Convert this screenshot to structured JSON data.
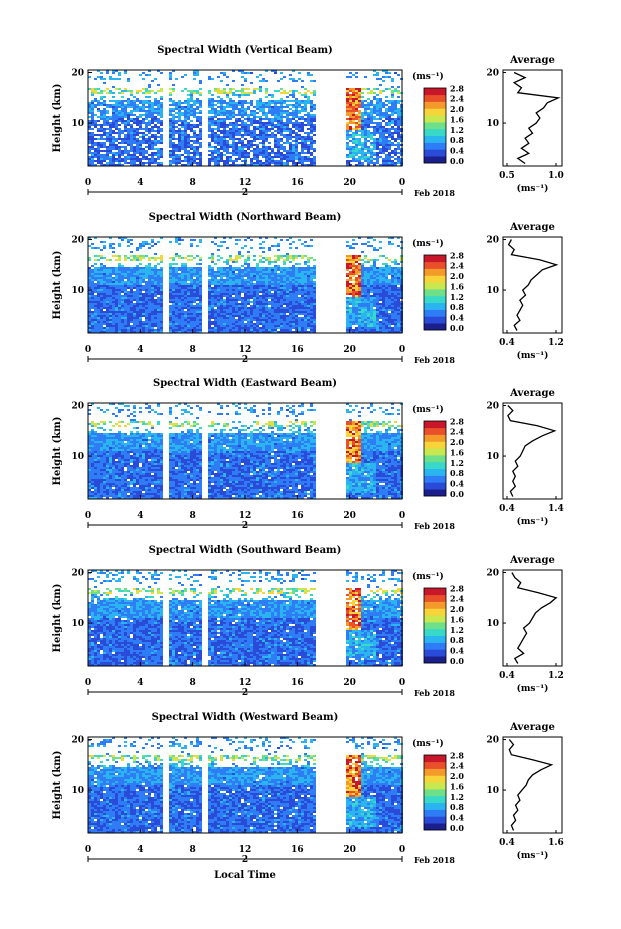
{
  "figure": {
    "date_label": "Feb 2018",
    "xlabel": "Local Time",
    "ylabel": "Height (km)",
    "unit_label": "(ms⁻¹)",
    "x_ticks": [
      "0",
      "4",
      "8",
      "12",
      "16",
      "20",
      "0"
    ],
    "day_label": "2",
    "y_ticks": [
      "20",
      "10"
    ],
    "colorbar_ticks": [
      "0.0",
      "0.4",
      "0.8",
      "1.2",
      "1.6",
      "2.0",
      "2.4",
      "2.8"
    ],
    "avg_title": "Average",
    "avg_unit": "(ms⁻¹)",
    "colormap": [
      "#1b1f8c",
      "#2a4bd7",
      "#2f7df6",
      "#2bb5f0",
      "#38d9c8",
      "#6fe08a",
      "#c9e84f",
      "#f6d43a",
      "#f39a2b",
      "#e9502a",
      "#c8172a"
    ]
  },
  "chart_data": [
    {
      "type": "heatmap",
      "title": "Spectral Width (Vertical Beam)",
      "xlabel": "Local Time",
      "ylabel": "Height (km)",
      "xlim": [
        0,
        24
      ],
      "ylim": [
        1.5,
        20.5
      ],
      "clim": [
        0.0,
        2.8
      ],
      "data_gaps_h": [
        [
          5.6,
          6.1
        ],
        [
          8.6,
          9.0
        ],
        [
          17.4,
          19.5
        ]
      ],
      "profile": {
        "title": "Average",
        "xlabel": "(ms⁻¹)",
        "xlim": [
          0.3,
          1.1
        ],
        "xticks": [
          "0.5",
          "1.0"
        ],
        "height_km": [
          2,
          3,
          4,
          5,
          6,
          7,
          8,
          9,
          10,
          11,
          12,
          13,
          14,
          15,
          16,
          17,
          18,
          19,
          20
        ],
        "avg_ms": [
          0.6,
          0.5,
          0.65,
          0.55,
          0.65,
          0.6,
          0.7,
          0.65,
          0.75,
          0.8,
          0.75,
          0.85,
          0.9,
          1.05,
          0.5,
          0.55,
          0.45,
          0.6,
          0.45
        ]
      }
    },
    {
      "type": "heatmap",
      "title": "Spectral Width (Northward Beam)",
      "xlabel": "Local Time",
      "ylabel": "Height (km)",
      "xlim": [
        0,
        24
      ],
      "ylim": [
        1.5,
        20.5
      ],
      "clim": [
        0.0,
        2.8
      ],
      "data_gaps_h": [
        [
          5.6,
          6.1
        ],
        [
          8.6,
          9.0
        ],
        [
          17.4,
          19.5
        ]
      ],
      "profile": {
        "title": "Average",
        "xlabel": "(ms⁻¹)",
        "xlim": [
          0.3,
          1.35
        ],
        "xticks": [
          "0.4",
          "1.2"
        ],
        "height_km": [
          2,
          3,
          4,
          5,
          6,
          7,
          8,
          9,
          10,
          11,
          12,
          13,
          14,
          15,
          16,
          17,
          18,
          19,
          20
        ],
        "avg_ms": [
          0.55,
          0.5,
          0.6,
          0.55,
          0.6,
          0.65,
          0.6,
          0.7,
          0.65,
          0.75,
          0.8,
          0.9,
          1.0,
          1.25,
          0.95,
          0.45,
          0.5,
          0.4,
          0.45
        ]
      }
    },
    {
      "type": "heatmap",
      "title": "Spectral Width (Eastward Beam)",
      "xlabel": "Local Time",
      "ylabel": "Height (km)",
      "xlim": [
        0,
        24
      ],
      "ylim": [
        1.5,
        20.5
      ],
      "clim": [
        0.0,
        2.8
      ],
      "data_gaps_h": [
        [
          5.6,
          6.1
        ],
        [
          8.6,
          9.0
        ],
        [
          17.4,
          19.5
        ]
      ],
      "profile": {
        "title": "Average",
        "xlabel": "(ms⁻¹)",
        "xlim": [
          0.3,
          1.5
        ],
        "xticks": [
          "0.4",
          "1.4"
        ],
        "height_km": [
          2,
          3,
          4,
          5,
          6,
          7,
          8,
          9,
          10,
          11,
          12,
          13,
          14,
          15,
          16,
          17,
          18,
          19,
          20
        ],
        "avg_ms": [
          0.5,
          0.45,
          0.55,
          0.5,
          0.55,
          0.5,
          0.6,
          0.55,
          0.65,
          0.7,
          0.75,
          0.9,
          1.1,
          1.35,
          1.0,
          0.45,
          0.4,
          0.5,
          0.4
        ]
      }
    },
    {
      "type": "heatmap",
      "title": "Spectral Width (Southward Beam)",
      "xlabel": "Local Time",
      "ylabel": "Height (km)",
      "xlim": [
        0,
        24
      ],
      "ylim": [
        1.5,
        20.5
      ],
      "clim": [
        0.0,
        2.8
      ],
      "data_gaps_h": [
        [
          5.6,
          6.1
        ],
        [
          8.6,
          9.0
        ],
        [
          17.4,
          19.5
        ]
      ],
      "profile": {
        "title": "Average",
        "xlabel": "(ms⁻¹)",
        "xlim": [
          0.3,
          1.3
        ],
        "xticks": [
          "0.4",
          "1.2"
        ],
        "height_km": [
          2,
          3,
          4,
          5,
          6,
          7,
          8,
          9,
          10,
          11,
          12,
          13,
          14,
          15,
          16,
          17,
          18,
          19,
          20
        ],
        "avg_ms": [
          0.55,
          0.5,
          0.65,
          0.55,
          0.6,
          0.65,
          0.7,
          0.65,
          0.75,
          0.8,
          0.85,
          0.95,
          1.1,
          1.2,
          0.9,
          0.55,
          0.6,
          0.5,
          0.45
        ]
      }
    },
    {
      "type": "heatmap",
      "title": "Spectral Width (Westward Beam)",
      "xlabel": "Local Time",
      "ylabel": "Height (km)",
      "xlim": [
        0,
        24
      ],
      "ylim": [
        1.5,
        20.5
      ],
      "clim": [
        0.0,
        2.8
      ],
      "data_gaps_h": [
        [
          5.6,
          6.1
        ],
        [
          8.6,
          9.0
        ],
        [
          17.4,
          19.5
        ]
      ],
      "profile": {
        "title": "Average",
        "xlabel": "(ms⁻¹)",
        "xlim": [
          0.3,
          1.7
        ],
        "xticks": [
          "0.4",
          "1.6"
        ],
        "height_km": [
          2,
          3,
          4,
          5,
          6,
          7,
          8,
          9,
          10,
          11,
          12,
          13,
          14,
          15,
          16,
          17,
          18,
          19,
          20
        ],
        "avg_ms": [
          0.55,
          0.5,
          0.6,
          0.55,
          0.65,
          0.6,
          0.7,
          0.65,
          0.75,
          0.85,
          0.9,
          1.0,
          1.2,
          1.45,
          1.0,
          0.5,
          0.45,
          0.55,
          0.45
        ]
      }
    }
  ]
}
